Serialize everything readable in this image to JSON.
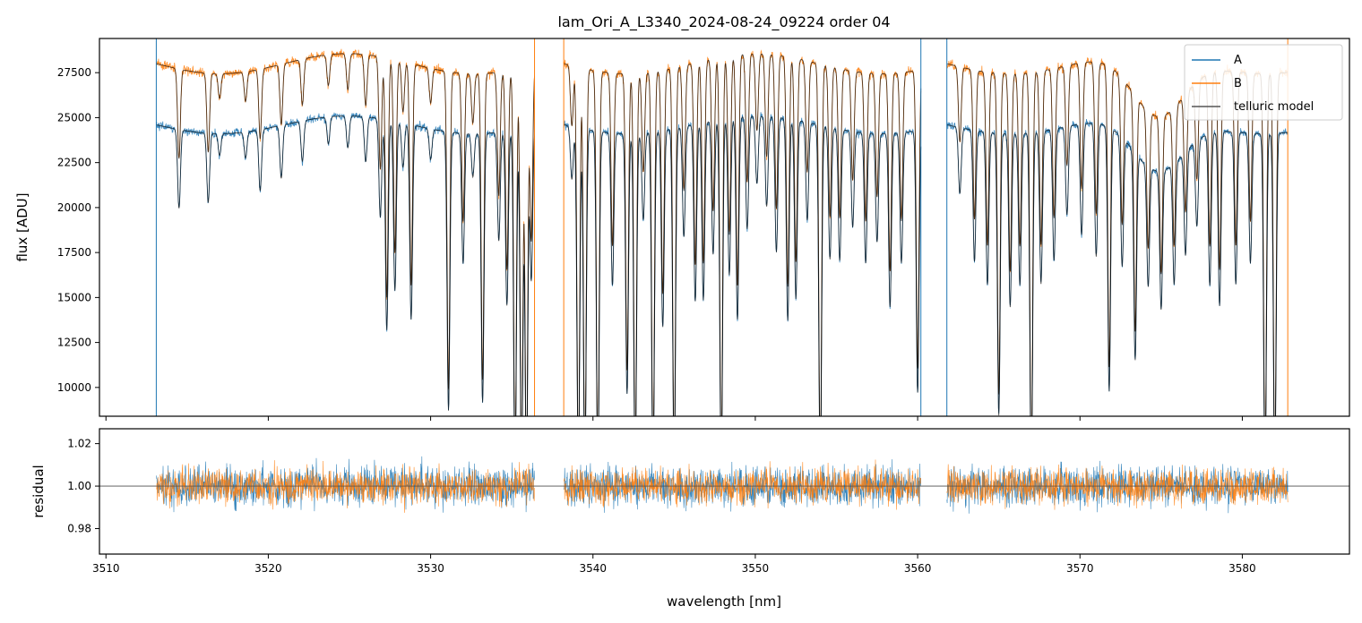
{
  "chart_data": [
    {
      "panel": "top",
      "type": "line",
      "title": "lam_Ori_A_L3340_2024-08-24_09224  order 04",
      "xlabel": "",
      "ylabel": "flux [ADU]",
      "xlim": [
        3509.6,
        3586.6
      ],
      "ylim": [
        8400,
        29400
      ],
      "yticks": [
        10000,
        12500,
        15000,
        17500,
        20000,
        22500,
        25000,
        27500
      ],
      "ytick_labels": [
        "10000",
        "12500",
        "15000",
        "17500",
        "20000",
        "22500",
        "25000",
        "27500"
      ],
      "xticks": [
        3510,
        3520,
        3530,
        3540,
        3550,
        3560,
        3570,
        3580
      ],
      "grid": false,
      "legend_position": "top-right",
      "segments": [
        [
          3513.1,
          3536.4
        ],
        [
          3538.2,
          3560.2
        ],
        [
          3561.8,
          3582.8
        ]
      ],
      "series": [
        {
          "name": "A",
          "color": "#1f77b4",
          "level": 24600,
          "values": "telluric absorption spectrum, continuum ~22500-25000 ADU"
        },
        {
          "name": "B",
          "color": "#ff7f0e",
          "level": 28000,
          "values": "telluric absorption spectrum, continuum ~26500-28500 ADU"
        },
        {
          "name": "telluric model",
          "color": "#000000"
        }
      ],
      "absorption_lines": [
        [
          3514.5,
          0.18
        ],
        [
          3516.3,
          0.16
        ],
        [
          3517.0,
          0.05
        ],
        [
          3518.6,
          0.06
        ],
        [
          3519.5,
          0.14
        ],
        [
          3520.8,
          0.12
        ],
        [
          3522.1,
          0.09
        ],
        [
          3523.7,
          0.06
        ],
        [
          3524.9,
          0.07
        ],
        [
          3526.0,
          0.1
        ],
        [
          3526.9,
          0.22
        ],
        [
          3527.3,
          0.47
        ],
        [
          3527.8,
          0.38
        ],
        [
          3528.3,
          0.1
        ],
        [
          3528.8,
          0.44
        ],
        [
          3530.0,
          0.07
        ],
        [
          3531.1,
          0.64
        ],
        [
          3532.0,
          0.3
        ],
        [
          3532.6,
          0.1
        ],
        [
          3533.2,
          0.62
        ],
        [
          3534.2,
          0.25
        ],
        [
          3534.7,
          0.4
        ],
        [
          3535.2,
          0.8
        ],
        [
          3535.6,
          0.8
        ],
        [
          3535.9,
          0.8
        ],
        [
          3536.2,
          0.35
        ],
        [
          3538.7,
          0.12
        ],
        [
          3539.1,
          0.8
        ],
        [
          3539.5,
          0.8
        ],
        [
          3540.3,
          0.8
        ],
        [
          3541.2,
          0.35
        ],
        [
          3542.1,
          0.6
        ],
        [
          3542.6,
          0.8
        ],
        [
          3543.1,
          0.2
        ],
        [
          3543.7,
          0.8
        ],
        [
          3544.3,
          0.45
        ],
        [
          3545.0,
          0.8
        ],
        [
          3545.6,
          0.25
        ],
        [
          3546.3,
          0.4
        ],
        [
          3546.8,
          0.4
        ],
        [
          3547.4,
          0.3
        ],
        [
          3547.9,
          0.8
        ],
        [
          3548.4,
          0.35
        ],
        [
          3548.9,
          0.45
        ],
        [
          3549.5,
          0.25
        ],
        [
          3550.1,
          0.15
        ],
        [
          3550.7,
          0.2
        ],
        [
          3551.3,
          0.3
        ],
        [
          3552.0,
          0.45
        ],
        [
          3552.5,
          0.4
        ],
        [
          3553.2,
          0.22
        ],
        [
          3554.0,
          0.8
        ],
        [
          3554.6,
          0.3
        ],
        [
          3555.2,
          0.3
        ],
        [
          3556.0,
          0.22
        ],
        [
          3556.8,
          0.3
        ],
        [
          3557.5,
          0.25
        ],
        [
          3558.3,
          0.4
        ],
        [
          3559.0,
          0.3
        ],
        [
          3560.0,
          0.6
        ],
        [
          3562.6,
          0.15
        ],
        [
          3563.5,
          0.3
        ],
        [
          3564.3,
          0.35
        ],
        [
          3565.0,
          0.65
        ],
        [
          3565.7,
          0.4
        ],
        [
          3566.3,
          0.35
        ],
        [
          3567.0,
          0.8
        ],
        [
          3567.6,
          0.35
        ],
        [
          3568.4,
          0.3
        ],
        [
          3569.2,
          0.2
        ],
        [
          3570.1,
          0.25
        ],
        [
          3571.0,
          0.3
        ],
        [
          3571.8,
          0.6
        ],
        [
          3572.6,
          0.3
        ],
        [
          3573.4,
          0.5
        ],
        [
          3574.2,
          0.3
        ],
        [
          3575.0,
          0.35
        ],
        [
          3575.8,
          0.3
        ],
        [
          3576.5,
          0.25
        ],
        [
          3577.2,
          0.2
        ],
        [
          3578.0,
          0.35
        ],
        [
          3578.6,
          0.4
        ],
        [
          3579.6,
          0.35
        ],
        [
          3580.5,
          0.3
        ],
        [
          3581.4,
          0.8
        ],
        [
          3582.0,
          0.8
        ]
      ]
    },
    {
      "panel": "bottom",
      "type": "line",
      "xlabel": "wavelength [nm]",
      "ylabel": "residual",
      "xlim": [
        3509.6,
        3586.6
      ],
      "ylim": [
        0.968,
        1.027
      ],
      "yticks": [
        0.98,
        1.0,
        1.02
      ],
      "ytick_labels": [
        "0.98",
        "1.00",
        "1.02"
      ],
      "xticks": [
        3510,
        3520,
        3530,
        3540,
        3550,
        3560,
        3570,
        3580
      ],
      "xtick_labels": [
        "3510",
        "3520",
        "3530",
        "3540",
        "3550",
        "3560",
        "3570",
        "3580"
      ],
      "reference_line": 1.0,
      "grid": false,
      "series": [
        {
          "name": "A",
          "color": "#1f77b4"
        },
        {
          "name": "B",
          "color": "#ff7f0e"
        }
      ]
    }
  ]
}
